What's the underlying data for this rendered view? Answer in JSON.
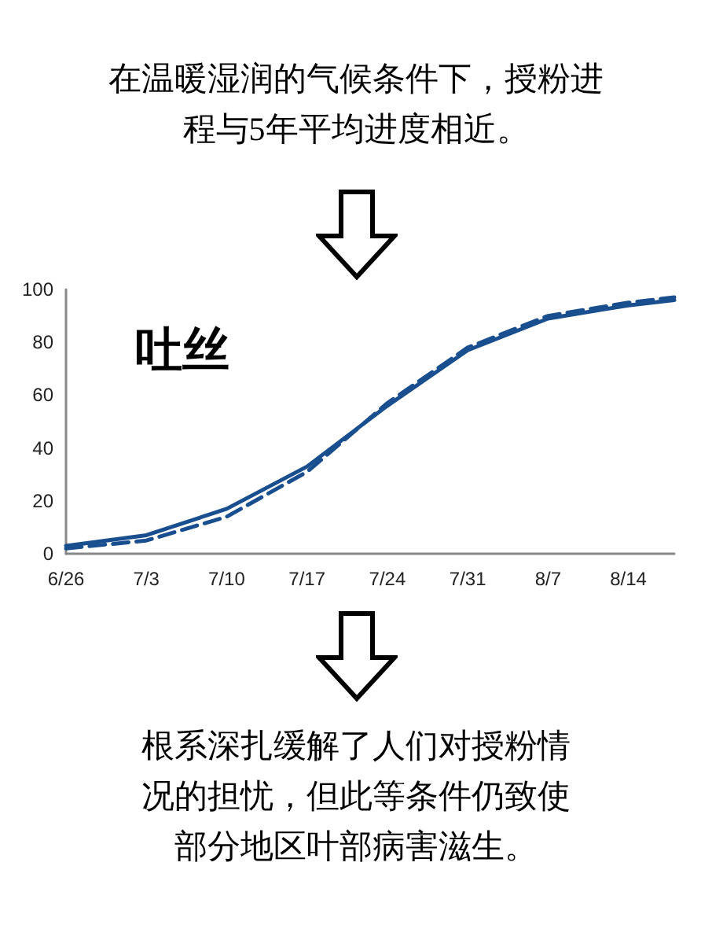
{
  "chart_data": {
    "type": "line",
    "title": "在温暖湿润的气候条件下，授粉进程与5年平均进度相近。",
    "subtitle": "吐丝",
    "annotations": [
      "根系深扎缓解了人们对授粉情况的担忧，但此等条件仍致使部分地区叶部病害滋生。"
    ],
    "x": [
      "--06-26",
      "--07-03",
      "--07-10",
      "--07-17",
      "--07-24",
      "--07-31",
      "--08-07",
      "--08-14",
      "--08-18"
    ],
    "series": [
      {
        "color": "#1a4f8f",
        "line_style": "solid",
        "values": [
          3,
          7,
          17,
          33,
          56,
          77,
          89,
          94,
          96
        ]
      },
      {
        "color": "#1a4f8f",
        "line_style": "dashed",
        "values": [
          2,
          5,
          14,
          31,
          57,
          78,
          90,
          95,
          97
        ]
      }
    ],
    "xlim": [
      "--06-26",
      "--08-18"
    ],
    "xticks": [
      {
        "value": "--06-26",
        "label": "6/26"
      },
      {
        "value": "--07-03",
        "label": "7/3"
      },
      {
        "value": "--07-10",
        "label": "7/10"
      },
      {
        "value": "--07-17",
        "label": "7/17"
      },
      {
        "value": "--07-24",
        "label": "7/24"
      },
      {
        "value": "--07-31",
        "label": "7/31"
      },
      {
        "value": "--08-07",
        "label": "8/7"
      },
      {
        "value": "--08-14",
        "label": "8/14"
      }
    ],
    "ylim": [
      0,
      100
    ],
    "yticks": [
      0,
      20,
      40,
      60,
      80,
      100
    ],
    "grid": false,
    "marker": "none"
  }
}
